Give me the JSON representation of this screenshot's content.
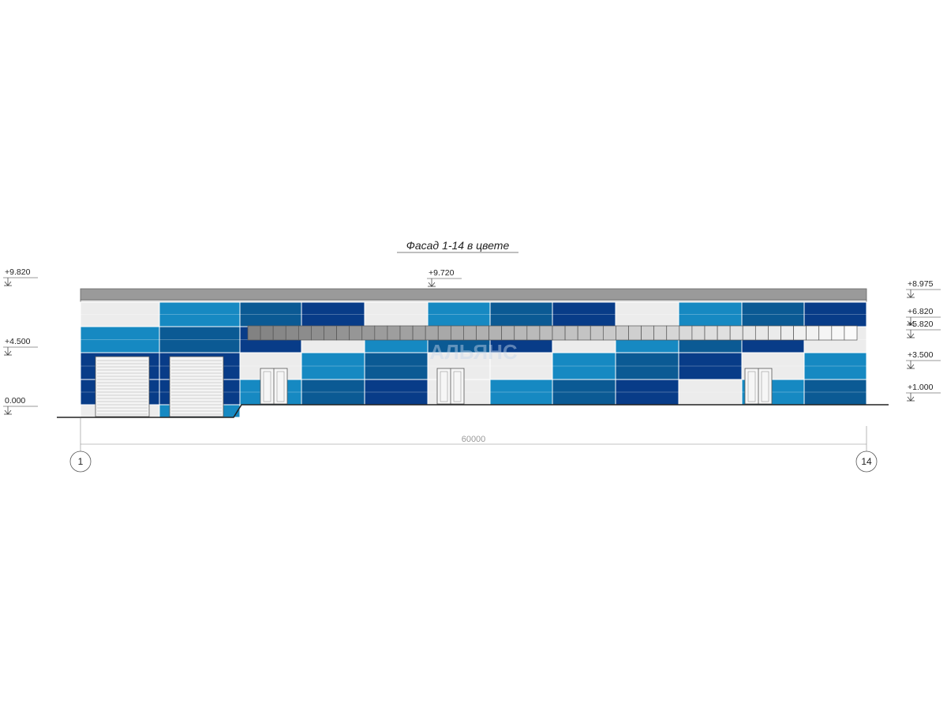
{
  "title": "Фасад 1-14 в цвете",
  "levels_left": [
    "+9.820",
    "+4.500",
    "0.000"
  ],
  "roof_level": "+9.720",
  "levels_right": [
    "+8.975",
    "+6.820",
    "+5.820",
    "+3.500",
    "+1.000"
  ],
  "dimension": "60000",
  "axes": [
    "1",
    "14"
  ],
  "watermark": "АЛЬЯНС"
}
